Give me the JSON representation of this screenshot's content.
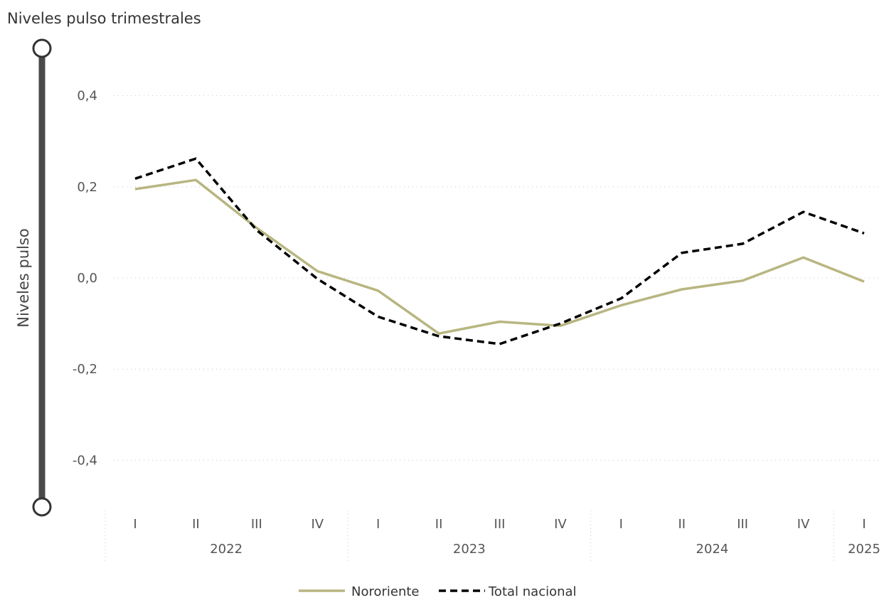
{
  "chart_data": {
    "type": "line",
    "title": "Niveles pulso trimestrales",
    "ylabel": "Niveles pulso",
    "xlabel": "",
    "ylim": [
      -0.5,
      0.5
    ],
    "yticks": [
      {
        "value": 0.4,
        "label": "0,4"
      },
      {
        "value": 0.2,
        "label": "0,2"
      },
      {
        "value": 0.0,
        "label": "0,0"
      },
      {
        "value": -0.2,
        "label": "-0,2"
      },
      {
        "value": -0.4,
        "label": "-0,4"
      }
    ],
    "grid": true,
    "legend_position": "bottom-center",
    "categories": [
      "I",
      "II",
      "III",
      "IV",
      "I",
      "II",
      "III",
      "IV",
      "I",
      "II",
      "III",
      "IV",
      "I"
    ],
    "year_groups": [
      {
        "label": "2022",
        "start": 0,
        "end": 3
      },
      {
        "label": "2023",
        "start": 4,
        "end": 7
      },
      {
        "label": "2024",
        "start": 8,
        "end": 11
      },
      {
        "label": "2025",
        "start": 12,
        "end": 12
      }
    ],
    "series": [
      {
        "name": "Nororiente",
        "color": "#B8B681",
        "style": "solid",
        "values": [
          0.195,
          0.215,
          0.11,
          0.015,
          -0.028,
          -0.122,
          -0.096,
          -0.105,
          -0.06,
          -0.025,
          -0.006,
          0.045,
          -0.008
        ]
      },
      {
        "name": "Total nacional",
        "color": "#000000",
        "style": "dashed",
        "values": [
          0.218,
          0.262,
          0.105,
          -0.002,
          -0.085,
          -0.128,
          -0.145,
          -0.1,
          -0.045,
          0.055,
          0.075,
          0.145,
          0.098
        ]
      }
    ]
  }
}
